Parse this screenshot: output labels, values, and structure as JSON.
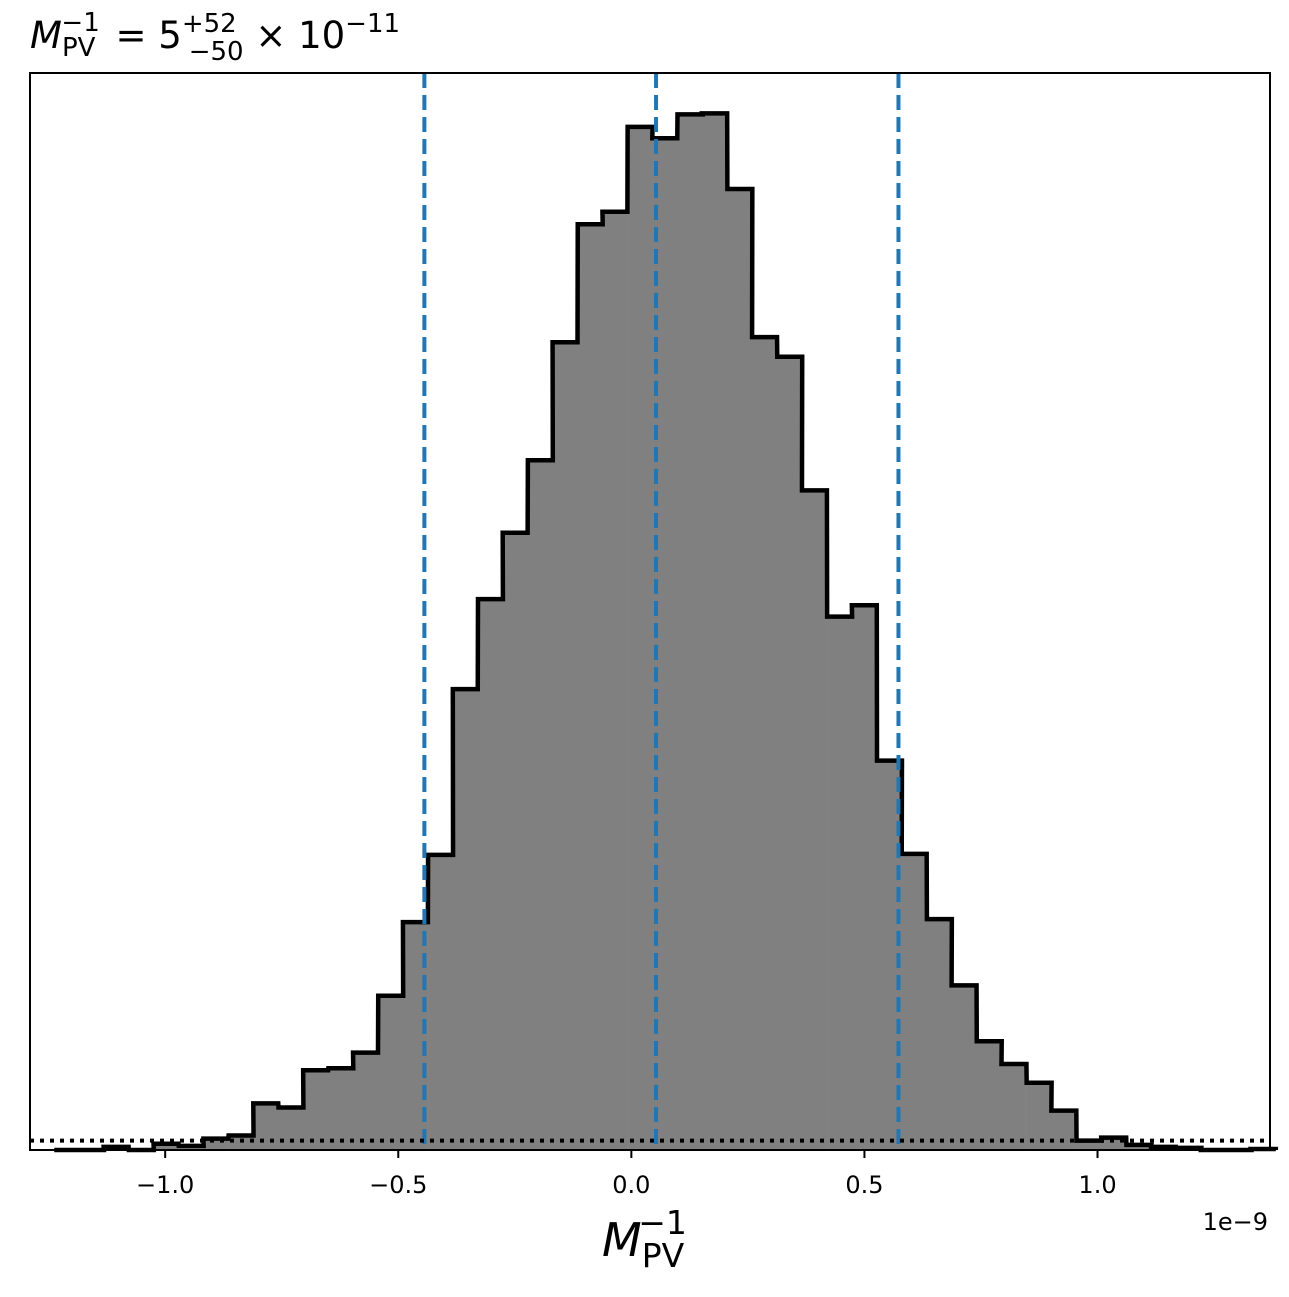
{
  "chart_data": {
    "type": "bar",
    "title": {
      "main": "M",
      "sub": "PV",
      "sup": "−1",
      "middle": " = 5",
      "err_plus": "+52",
      "err_minus": "−50",
      "times": " × 10",
      "exponent": "−11"
    },
    "xlabel": {
      "main": "M",
      "sub": "PV",
      "sup": "−1"
    },
    "ylabel": "",
    "offset_text": "1e−9",
    "xlim": [
      -1.29,
      1.37
    ],
    "ylim": [
      0,
      1.04
    ],
    "xticks": [
      {
        "value": -1.0,
        "label": "−1.0"
      },
      {
        "value": -0.5,
        "label": "−0.5"
      },
      {
        "value": 0.0,
        "label": "0.0"
      },
      {
        "value": 0.5,
        "label": "0.5"
      },
      {
        "value": 1.0,
        "label": "1.0"
      }
    ],
    "bins": {
      "left_edges": [
        -1.238,
        -1.185,
        -1.132,
        -1.078,
        -1.025,
        -0.971,
        -0.918,
        -0.864,
        -0.811,
        -0.757,
        -0.704,
        -0.65,
        -0.597,
        -0.543,
        -0.49,
        -0.436,
        -0.383,
        -0.329,
        -0.276,
        -0.222,
        -0.169,
        -0.115,
        -0.062,
        -0.008,
        0.045,
        0.099,
        0.152,
        0.206,
        0.259,
        0.313,
        0.366,
        0.42,
        0.473,
        0.527,
        0.58,
        0.634,
        0.687,
        0.741,
        0.794,
        0.848,
        0.901,
        0.955,
        1.008,
        1.062,
        1.115,
        1.169,
        1.222,
        1.276,
        1.329
      ],
      "bin_width": 0.0535,
      "heights": [
        0.0,
        0.0,
        0.003,
        0.0,
        0.006,
        0.004,
        0.011,
        0.014,
        0.045,
        0.041,
        0.077,
        0.079,
        0.094,
        0.149,
        0.22,
        0.285,
        0.445,
        0.532,
        0.596,
        0.666,
        0.78,
        0.894,
        0.906,
        0.988,
        0.977,
        1.0,
        1.001,
        0.928,
        0.785,
        0.766,
        0.637,
        0.515,
        0.526,
        0.376,
        0.286,
        0.223,
        0.159,
        0.105,
        0.083,
        0.065,
        0.038,
        0.009,
        0.012,
        0.005,
        0.003,
        0.002,
        0.0,
        0.0,
        0.001
      ]
    },
    "vlines": [
      {
        "x": -0.444,
        "style": "dashed",
        "color": "#1f77b4"
      },
      {
        "x": 0.053,
        "style": "dashed",
        "color": "#1f77b4"
      },
      {
        "x": 0.573,
        "style": "dashed",
        "color": "#1f77b4"
      }
    ],
    "hline": {
      "y": 0.009,
      "style": "dotted",
      "color": "#000000"
    },
    "colors": {
      "fill": "#808080",
      "edge": "#000000",
      "quantile": "#1f77b4"
    },
    "grid": false,
    "legend": "none"
  }
}
